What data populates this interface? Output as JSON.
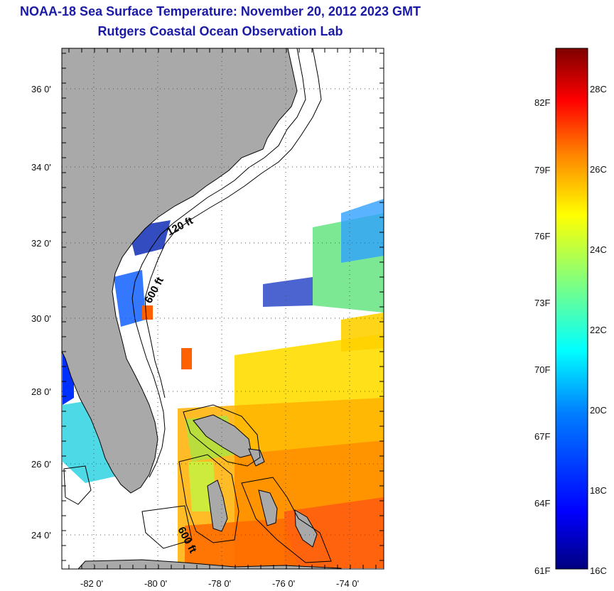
{
  "title": "NOAA-18 Sea Surface Temperature:  November 20, 2012 2023 GMT",
  "subtitle": "Rutgers Coastal Ocean Observation Lab",
  "map": {
    "lat_labels": [
      "24 0'",
      "26 0'",
      "28 0'",
      "30 0'",
      "32 0'",
      "34 0'",
      "36 0'"
    ],
    "lon_labels": [
      "-82 0'",
      "-80 0'",
      "-78 0'",
      "-76 0'",
      "-74 0'"
    ],
    "contour_labels": [
      "120 ft",
      "600 ft",
      "600 ft"
    ],
    "land_color": "#a9a9a9",
    "ocean_color": "#ffffff",
    "grid": "dotted"
  },
  "colorbar": {
    "fahrenheit_labels": [
      "82F",
      "79F",
      "76F",
      "73F",
      "70F",
      "67F",
      "64F",
      "61F"
    ],
    "celsius_labels": [
      "28C",
      "26C",
      "24C",
      "22C",
      "20C",
      "18C",
      "16C"
    ],
    "colors": [
      "#00007f",
      "#0000ff",
      "#007fff",
      "#00ffff",
      "#7fff7f",
      "#ffff00",
      "#ff7f00",
      "#ff0000",
      "#7f0000"
    ]
  }
}
